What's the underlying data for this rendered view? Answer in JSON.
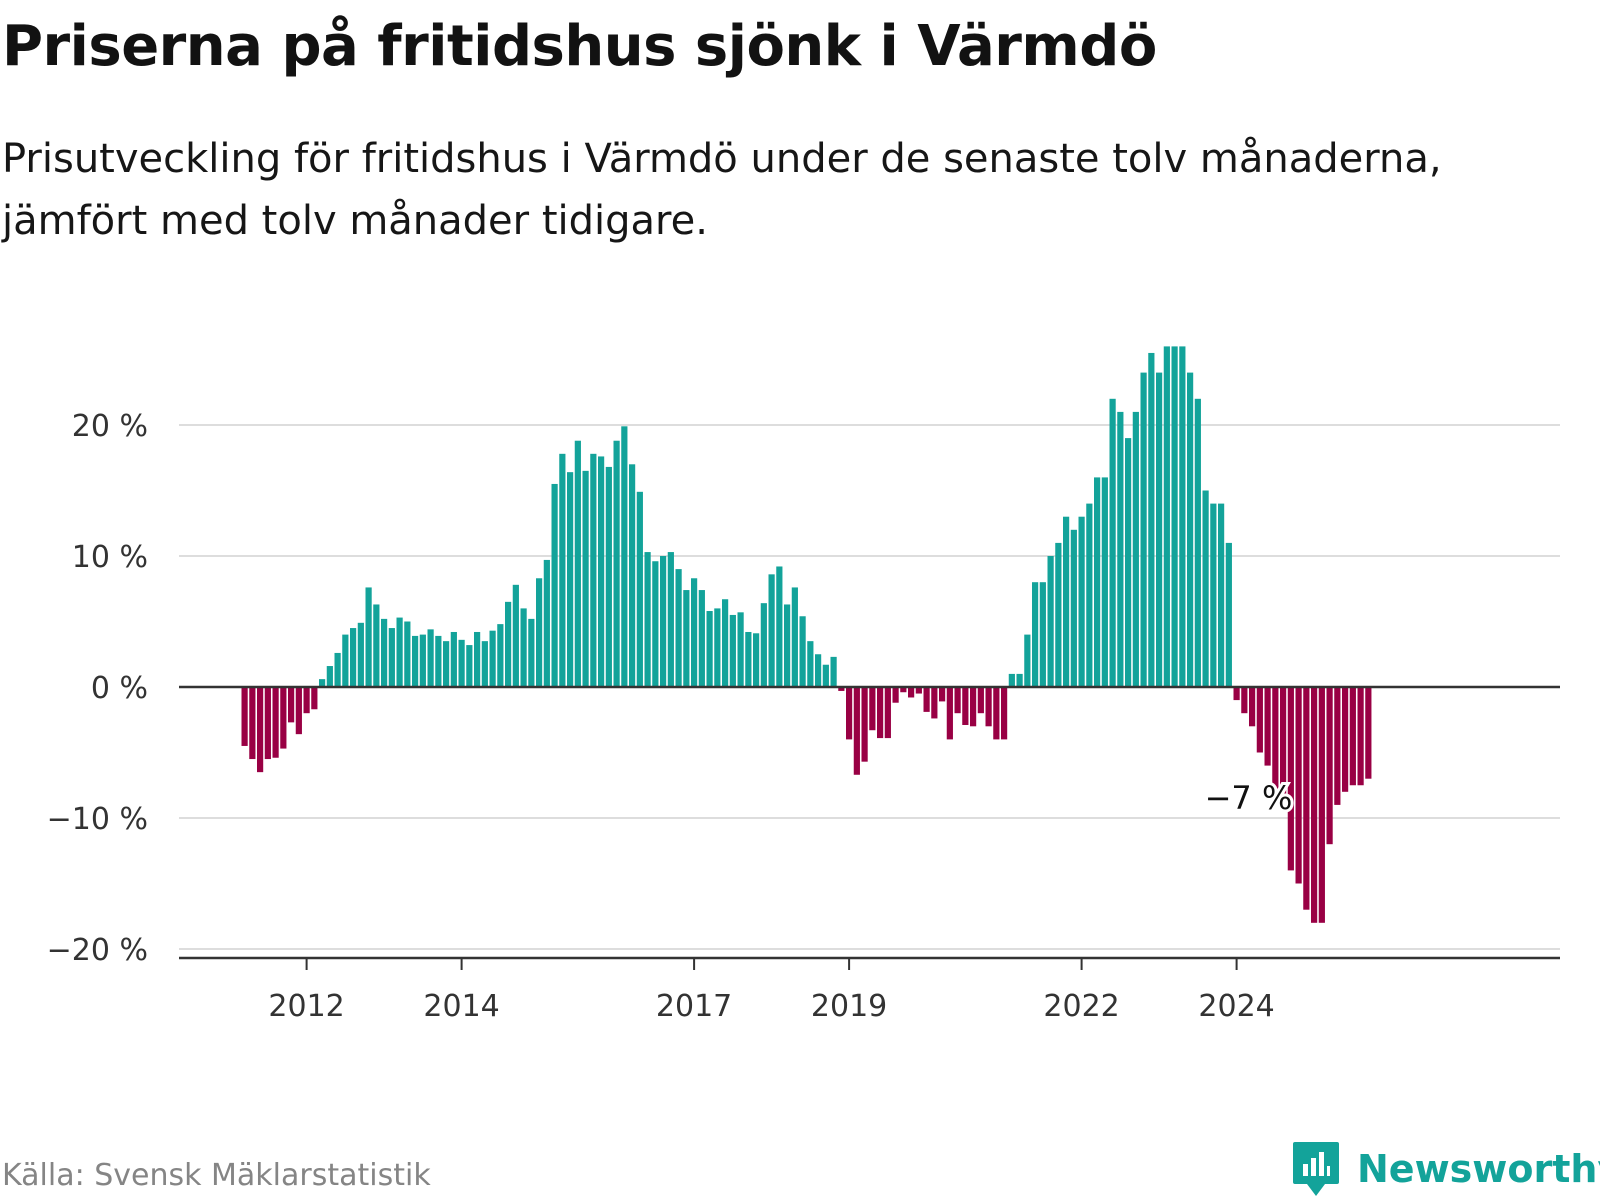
{
  "title": "Priserna på fritidshus sjönk i Värmdö",
  "subtitle": "Prisutveckling för fritidshus i Värmdö under de senaste tolv månaderna, jämfört med tolv månader tidigare.",
  "source": "Källa: Svensk Mäklarstatistik",
  "brand": "Newsworthy",
  "colors": {
    "positive": "#13a39a",
    "negative": "#990044",
    "brand": "#13a39a",
    "grid": "#dddddd",
    "axis": "#333333"
  },
  "chart_data": {
    "type": "bar",
    "title": "Priserna på fritidshus sjönk i Värmdö",
    "xlabel": "",
    "ylabel": "",
    "ylim": [
      -20,
      26
    ],
    "y_ticks": [
      20,
      10,
      0,
      -10,
      -20
    ],
    "y_tick_labels": [
      "20 %",
      "10 %",
      "0 %",
      "−10 %",
      "−20 %"
    ],
    "x_tick_labels": [
      "2012",
      "2014",
      "2017",
      "2019",
      "2022",
      "2024"
    ],
    "x_tick_index": [
      8,
      28,
      58,
      78,
      108,
      128
    ],
    "annotation": {
      "text": "−7 %",
      "index": 128
    },
    "values": [
      -4.5,
      -5.5,
      -6.5,
      -5.5,
      -5.4,
      -4.7,
      -2.7,
      -3.6,
      -2.0,
      -1.7,
      0.6,
      1.6,
      2.6,
      4.0,
      4.5,
      4.9,
      7.6,
      6.3,
      5.2,
      4.5,
      5.3,
      5.0,
      3.9,
      4.0,
      4.4,
      3.9,
      3.5,
      4.2,
      3.6,
      3.2,
      4.2,
      3.5,
      4.3,
      4.8,
      6.5,
      7.8,
      6.0,
      5.2,
      8.3,
      9.7,
      15.5,
      17.8,
      16.4,
      18.8,
      16.5,
      17.8,
      17.6,
      16.8,
      18.8,
      19.9,
      17.0,
      14.9,
      10.3,
      9.6,
      10.0,
      10.3,
      9.0,
      7.4,
      8.3,
      7.4,
      5.8,
      6.0,
      6.7,
      5.5,
      5.7,
      4.2,
      4.1,
      6.4,
      8.6,
      9.2,
      6.3,
      7.6,
      5.4,
      3.5,
      2.5,
      1.7,
      2.3,
      -0.3,
      -4.0,
      -6.7,
      -5.7,
      -3.3,
      -3.9,
      -3.9,
      -1.2,
      -0.4,
      -0.8,
      -0.5,
      -1.9,
      -2.4,
      -1.1,
      -4.0,
      -2.0,
      -2.9,
      -3.0,
      -2.0,
      -3.0,
      -4.0,
      -4.0,
      1.0,
      1.0,
      4.0,
      8.0,
      8.0,
      10.0,
      11.0,
      13.0,
      12.0,
      13.0,
      14.0,
      16.0,
      16.0,
      22.0,
      21.0,
      19.0,
      21.0,
      24.0,
      25.5,
      24.0,
      26.0,
      26.0,
      26.0,
      24.0,
      22.0,
      15.0,
      14.0,
      14.0,
      11.0,
      -1.0,
      -2.0,
      -3.0,
      -5.0,
      -6.0,
      -8.0,
      -9.0,
      -14.0,
      -15.0,
      -17.0,
      -18.0,
      -18.0,
      -12.0,
      -9.0,
      -8.0,
      -7.5,
      -7.5,
      -7.0
    ]
  }
}
